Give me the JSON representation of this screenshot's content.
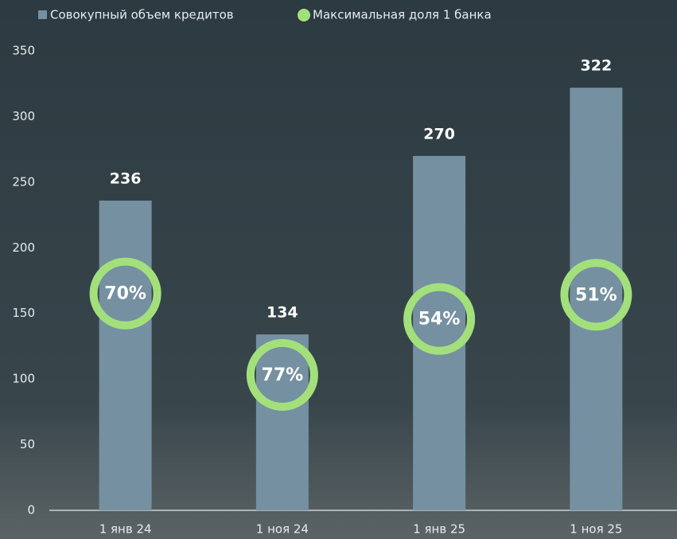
{
  "chart_data": {
    "type": "bar",
    "categories": [
      "1 янв 24",
      "1 ноя 24",
      "1 янв 25",
      "1 ноя 25"
    ],
    "series": [
      {
        "name": "Совокупный объем кредитов",
        "color": "#7590a0",
        "values": [
          236,
          134,
          270,
          322
        ]
      },
      {
        "name": "Максимальная доля 1 банка",
        "color": "#a3e07c",
        "values": [
          70,
          77,
          54,
          51
        ],
        "value_labels": [
          "70%",
          "77%",
          "54%",
          "51%"
        ]
      }
    ],
    "ylim": [
      0,
      350
    ],
    "yticks": [
      0,
      50,
      100,
      150,
      200,
      250,
      300,
      350
    ],
    "grid": false
  }
}
